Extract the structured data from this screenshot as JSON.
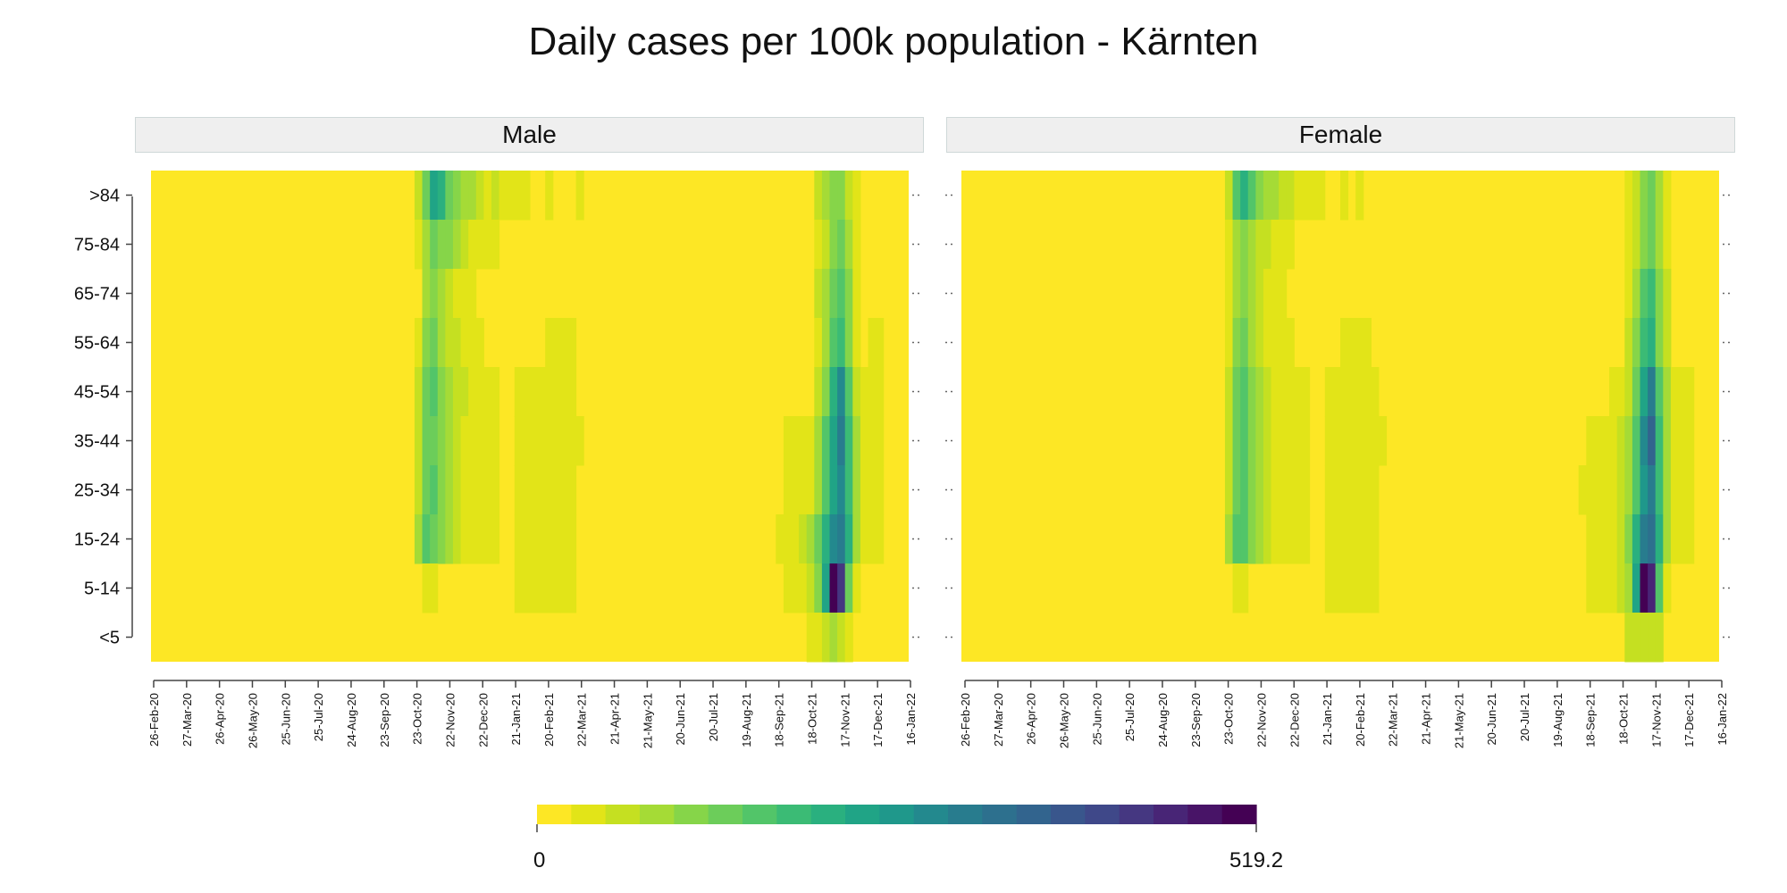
{
  "chart_data": {
    "type": "heatmap",
    "title": "Daily cases per 100k population - Kärnten",
    "panels": [
      {
        "name": "Male",
        "key": "male"
      },
      {
        "name": "Female",
        "key": "female"
      }
    ],
    "age_groups": [
      ">84",
      "75-84",
      "65-74",
      "55-64",
      "45-54",
      "35-44",
      "25-34",
      "15-24",
      "5-14",
      "<5"
    ],
    "x_ticks": [
      "26-Feb-20",
      "27-Mar-20",
      "26-Apr-20",
      "26-May-20",
      "25-Jun-20",
      "25-Jul-20",
      "24-Aug-20",
      "23-Sep-20",
      "23-Oct-20",
      "22-Nov-20",
      "22-Dec-20",
      "21-Jan-21",
      "20-Feb-21",
      "22-Mar-21",
      "21-Apr-21",
      "21-May-21",
      "20-Jun-21",
      "20-Jul-21",
      "19-Aug-21",
      "18-Sep-21",
      "18-Oct-21",
      "17-Nov-21",
      "17-Dec-21",
      "16-Jan-22"
    ],
    "x_range": [
      "2020-02-26",
      "2022-01-16"
    ],
    "legend": {
      "min_label": "0",
      "max_label": "519.2",
      "min": 0,
      "max": 519.2,
      "position": "bottom"
    },
    "colors": [
      "#fde725",
      "#e2e418",
      "#c5e021",
      "#a5db36",
      "#86d549",
      "#6ccd5a",
      "#52c569",
      "#3bbb75",
      "#2ab07f",
      "#20a486",
      "#1f988b",
      "#23898e",
      "#287c8e",
      "#2d708e",
      "#32648e",
      "#39568c",
      "#3f4889",
      "#453781",
      "#482576",
      "#481467",
      "#440154"
    ],
    "cell_dates": [
      "23-Oct-20",
      "30-Oct-20",
      "06-Nov-20",
      "13-Nov-20",
      "20-Nov-20",
      "27-Nov-20",
      "04-Dec-20",
      "11-Dec-20",
      "18-Dec-20",
      "25-Dec-20",
      "01-Jan-21",
      "08-Jan-21",
      "15-Jan-21",
      "22-Jan-21",
      "29-Jan-21",
      "05-Feb-21",
      "12-Feb-21",
      "19-Feb-21",
      "26-Feb-21",
      "05-Mar-21",
      "12-Mar-21",
      "19-Mar-21",
      "26-Mar-21",
      "02-Apr-21",
      "09-Apr-21",
      "16-Apr-21",
      "23-Apr-21",
      "30-Apr-21",
      "07-May-21",
      "14-May-21",
      "21-May-21",
      "28-May-21",
      "04-Jun-21",
      "11-Jun-21",
      "18-Jun-21",
      "25-Jun-21",
      "02-Jul-21",
      "09-Jul-21",
      "16-Jul-21",
      "23-Jul-21",
      "30-Jul-21",
      "06-Aug-21",
      "13-Aug-21",
      "20-Aug-21",
      "27-Aug-21",
      "03-Sep-21",
      "10-Sep-21",
      "17-Sep-21",
      "24-Sep-21",
      "01-Oct-21",
      "08-Oct-21",
      "15-Oct-21",
      "22-Oct-21",
      "29-Oct-21",
      "05-Nov-21",
      "12-Nov-21",
      "19-Nov-21",
      "26-Nov-21",
      "03-Dec-21",
      "10-Dec-21",
      "17-Dec-21",
      "24-Dec-21",
      "31-Dec-21",
      "07-Jan-22",
      "14-Jan-22"
    ],
    "value_note": "Cells not listed are 0 (darkest yellow). Each row has one value per date in cell_dates.",
    "male": {
      ">84": [
        2,
        5,
        9,
        8,
        5,
        4,
        3,
        3,
        2,
        1,
        2,
        1,
        1,
        1,
        1,
        0,
        0,
        1,
        0,
        0,
        0,
        1,
        0,
        0,
        0,
        0,
        0,
        0,
        0,
        0,
        0,
        0,
        0,
        0,
        0,
        0,
        0,
        0,
        0,
        0,
        0,
        0,
        0,
        0,
        0,
        0,
        0,
        0,
        0,
        0,
        0,
        0,
        2,
        3,
        4,
        4,
        2,
        1,
        0,
        0,
        0,
        0,
        0,
        0,
        0
      ],
      "75-84": [
        1,
        3,
        5,
        4,
        4,
        3,
        2,
        1,
        1,
        1,
        1,
        0,
        0,
        0,
        0,
        0,
        0,
        0,
        0,
        0,
        0,
        0,
        0,
        0,
        0,
        0,
        0,
        0,
        0,
        0,
        0,
        0,
        0,
        0,
        0,
        0,
        0,
        0,
        0,
        0,
        0,
        0,
        0,
        0,
        0,
        0,
        0,
        0,
        0,
        0,
        0,
        0,
        1,
        2,
        4,
        5,
        3,
        1,
        0,
        0,
        0,
        0,
        0,
        0,
        0
      ],
      "65-74": [
        0,
        3,
        4,
        3,
        2,
        1,
        1,
        1,
        0,
        0,
        0,
        0,
        0,
        0,
        0,
        0,
        0,
        0,
        0,
        0,
        0,
        0,
        0,
        0,
        0,
        0,
        0,
        0,
        0,
        0,
        0,
        0,
        0,
        0,
        0,
        0,
        0,
        0,
        0,
        0,
        0,
        0,
        0,
        0,
        0,
        0,
        0,
        0,
        0,
        0,
        0,
        0,
        2,
        3,
        5,
        6,
        4,
        1,
        0,
        0,
        0,
        0,
        0,
        0,
        0
      ],
      "55-64": [
        1,
        4,
        5,
        3,
        2,
        2,
        1,
        1,
        1,
        0,
        0,
        0,
        0,
        0,
        0,
        0,
        0,
        1,
        1,
        1,
        1,
        0,
        0,
        0,
        0,
        0,
        0,
        0,
        0,
        0,
        0,
        0,
        0,
        0,
        0,
        0,
        0,
        0,
        0,
        0,
        0,
        0,
        0,
        0,
        0,
        0,
        0,
        0,
        0,
        0,
        0,
        0,
        1,
        3,
        6,
        7,
        4,
        1,
        0,
        1,
        1,
        0,
        0,
        0,
        0
      ],
      "45-54": [
        2,
        5,
        6,
        4,
        3,
        2,
        2,
        1,
        1,
        1,
        1,
        0,
        0,
        1,
        1,
        1,
        1,
        1,
        1,
        1,
        1,
        0,
        0,
        0,
        0,
        0,
        0,
        0,
        0,
        0,
        0,
        0,
        0,
        0,
        0,
        0,
        0,
        0,
        0,
        0,
        0,
        0,
        0,
        0,
        0,
        0,
        0,
        0,
        0,
        0,
        0,
        0,
        2,
        4,
        8,
        11,
        6,
        2,
        1,
        1,
        1,
        0,
        0,
        0,
        0
      ],
      "35-44": [
        2,
        5,
        5,
        4,
        3,
        2,
        1,
        1,
        1,
        1,
        1,
        0,
        0,
        1,
        1,
        1,
        1,
        1,
        1,
        1,
        1,
        1,
        0,
        0,
        0,
        0,
        0,
        0,
        0,
        0,
        0,
        0,
        0,
        0,
        0,
        0,
        0,
        0,
        0,
        0,
        0,
        0,
        0,
        0,
        0,
        0,
        0,
        0,
        1,
        1,
        1,
        1,
        3,
        6,
        9,
        12,
        7,
        3,
        1,
        1,
        1,
        0,
        0,
        0,
        0
      ],
      "25-34": [
        2,
        5,
        6,
        4,
        3,
        2,
        1,
        1,
        1,
        1,
        1,
        0,
        0,
        1,
        1,
        1,
        1,
        1,
        1,
        1,
        1,
        0,
        0,
        0,
        0,
        0,
        0,
        0,
        0,
        0,
        0,
        0,
        0,
        0,
        0,
        0,
        0,
        0,
        0,
        0,
        0,
        0,
        0,
        0,
        0,
        0,
        0,
        0,
        1,
        1,
        1,
        1,
        3,
        6,
        9,
        11,
        7,
        3,
        1,
        1,
        1,
        0,
        0,
        0,
        0
      ],
      "15-24": [
        3,
        6,
        5,
        4,
        3,
        2,
        1,
        1,
        1,
        1,
        1,
        0,
        0,
        1,
        1,
        1,
        1,
        1,
        1,
        1,
        1,
        0,
        0,
        0,
        0,
        0,
        0,
        0,
        0,
        0,
        0,
        0,
        0,
        0,
        0,
        0,
        0,
        0,
        0,
        0,
        0,
        0,
        0,
        0,
        0,
        0,
        0,
        1,
        1,
        1,
        2,
        3,
        5,
        8,
        11,
        12,
        8,
        3,
        1,
        1,
        1,
        0,
        0,
        0,
        0
      ],
      "5-14": [
        0,
        1,
        1,
        0,
        0,
        0,
        0,
        0,
        0,
        0,
        0,
        0,
        0,
        1,
        1,
        1,
        1,
        1,
        1,
        1,
        1,
        0,
        0,
        0,
        0,
        0,
        0,
        0,
        0,
        0,
        0,
        0,
        0,
        0,
        0,
        0,
        0,
        0,
        0,
        0,
        0,
        0,
        0,
        0,
        0,
        0,
        0,
        0,
        1,
        1,
        1,
        2,
        4,
        9,
        20,
        17,
        5,
        1,
        0,
        0,
        0,
        0,
        0,
        0,
        0
      ],
      "<5": [
        0,
        0,
        0,
        0,
        0,
        0,
        0,
        0,
        0,
        0,
        0,
        0,
        0,
        0,
        0,
        0,
        0,
        0,
        0,
        0,
        0,
        0,
        0,
        0,
        0,
        0,
        0,
        0,
        0,
        0,
        0,
        0,
        0,
        0,
        0,
        0,
        0,
        0,
        0,
        0,
        0,
        0,
        0,
        0,
        0,
        0,
        0,
        0,
        0,
        0,
        0,
        1,
        1,
        2,
        3,
        2,
        1,
        0,
        0,
        0,
        0,
        0,
        0,
        0,
        0
      ]
    },
    "female": {
      ">84": [
        2,
        6,
        8,
        6,
        4,
        3,
        3,
        2,
        2,
        1,
        1,
        1,
        1,
        0,
        0,
        1,
        0,
        1,
        0,
        0,
        0,
        0,
        0,
        0,
        0,
        0,
        0,
        0,
        0,
        0,
        0,
        0,
        0,
        0,
        0,
        0,
        0,
        0,
        0,
        0,
        0,
        0,
        0,
        0,
        0,
        0,
        0,
        0,
        0,
        0,
        0,
        0,
        1,
        2,
        4,
        5,
        3,
        1,
        0,
        0,
        0,
        0,
        0,
        0,
        0
      ],
      "75-84": [
        1,
        3,
        4,
        3,
        2,
        2,
        1,
        1,
        1,
        0,
        0,
        0,
        0,
        0,
        0,
        0,
        0,
        0,
        0,
        0,
        0,
        0,
        0,
        0,
        0,
        0,
        0,
        0,
        0,
        0,
        0,
        0,
        0,
        0,
        0,
        0,
        0,
        0,
        0,
        0,
        0,
        0,
        0,
        0,
        0,
        0,
        0,
        0,
        0,
        0,
        0,
        0,
        1,
        2,
        4,
        5,
        3,
        1,
        0,
        0,
        0,
        0,
        0,
        0,
        0
      ],
      "65-74": [
        1,
        3,
        4,
        3,
        2,
        1,
        1,
        1,
        0,
        0,
        0,
        0,
        0,
        0,
        0,
        0,
        0,
        0,
        0,
        0,
        0,
        0,
        0,
        0,
        0,
        0,
        0,
        0,
        0,
        0,
        0,
        0,
        0,
        0,
        0,
        0,
        0,
        0,
        0,
        0,
        0,
        0,
        0,
        0,
        0,
        0,
        0,
        0,
        0,
        0,
        0,
        0,
        1,
        3,
        6,
        7,
        4,
        2,
        0,
        0,
        0,
        0,
        0,
        0,
        0
      ],
      "55-64": [
        1,
        4,
        5,
        3,
        2,
        1,
        1,
        1,
        1,
        0,
        0,
        0,
        0,
        0,
        0,
        1,
        1,
        1,
        1,
        0,
        0,
        0,
        0,
        0,
        0,
        0,
        0,
        0,
        0,
        0,
        0,
        0,
        0,
        0,
        0,
        0,
        0,
        0,
        0,
        0,
        0,
        0,
        0,
        0,
        0,
        0,
        0,
        0,
        0,
        0,
        0,
        0,
        2,
        4,
        7,
        8,
        4,
        2,
        0,
        0,
        0,
        0,
        0,
        0,
        0
      ],
      "45-54": [
        2,
        5,
        6,
        4,
        3,
        2,
        1,
        1,
        1,
        1,
        1,
        0,
        0,
        1,
        1,
        1,
        1,
        1,
        1,
        1,
        0,
        0,
        0,
        0,
        0,
        0,
        0,
        0,
        0,
        0,
        0,
        0,
        0,
        0,
        0,
        0,
        0,
        0,
        0,
        0,
        0,
        0,
        0,
        0,
        0,
        0,
        0,
        0,
        0,
        0,
        1,
        1,
        2,
        5,
        9,
        12,
        6,
        3,
        1,
        1,
        1,
        0,
        0,
        0,
        0
      ],
      "35-44": [
        2,
        5,
        6,
        4,
        3,
        2,
        1,
        1,
        1,
        1,
        1,
        0,
        0,
        1,
        1,
        1,
        1,
        1,
        1,
        1,
        1,
        0,
        0,
        0,
        0,
        0,
        0,
        0,
        0,
        0,
        0,
        0,
        0,
        0,
        0,
        0,
        0,
        0,
        0,
        0,
        0,
        0,
        0,
        0,
        0,
        0,
        0,
        1,
        1,
        1,
        1,
        2,
        3,
        6,
        11,
        14,
        7,
        3,
        1,
        1,
        1,
        0,
        0,
        0,
        0
      ],
      "25-34": [
        2,
        5,
        6,
        4,
        3,
        2,
        1,
        1,
        1,
        1,
        1,
        0,
        0,
        1,
        1,
        1,
        1,
        1,
        1,
        1,
        0,
        0,
        0,
        0,
        0,
        0,
        0,
        0,
        0,
        0,
        0,
        0,
        0,
        0,
        0,
        0,
        0,
        0,
        0,
        0,
        0,
        0,
        0,
        0,
        0,
        0,
        1,
        1,
        1,
        1,
        1,
        2,
        3,
        6,
        10,
        12,
        7,
        3,
        1,
        1,
        1,
        0,
        0,
        0,
        0
      ],
      "15-24": [
        3,
        6,
        6,
        4,
        3,
        2,
        1,
        1,
        1,
        1,
        1,
        0,
        0,
        1,
        1,
        1,
        1,
        1,
        1,
        1,
        0,
        0,
        0,
        0,
        0,
        0,
        0,
        0,
        0,
        0,
        0,
        0,
        0,
        0,
        0,
        0,
        0,
        0,
        0,
        0,
        0,
        0,
        0,
        0,
        0,
        0,
        0,
        1,
        1,
        1,
        1,
        2,
        4,
        8,
        12,
        13,
        8,
        3,
        1,
        1,
        1,
        0,
        0,
        0,
        0
      ],
      "5-14": [
        0,
        1,
        1,
        0,
        0,
        0,
        0,
        0,
        0,
        0,
        0,
        0,
        0,
        1,
        1,
        1,
        1,
        1,
        1,
        1,
        0,
        0,
        0,
        0,
        0,
        0,
        0,
        0,
        0,
        0,
        0,
        0,
        0,
        0,
        0,
        0,
        0,
        0,
        0,
        0,
        0,
        0,
        0,
        0,
        0,
        0,
        0,
        1,
        1,
        1,
        1,
        2,
        3,
        9,
        20,
        18,
        6,
        1,
        0,
        0,
        0,
        0,
        0,
        0,
        0
      ],
      "<5": [
        0,
        0,
        0,
        0,
        0,
        0,
        0,
        0,
        0,
        0,
        0,
        0,
        0,
        0,
        0,
        0,
        0,
        0,
        0,
        0,
        0,
        0,
        0,
        0,
        0,
        0,
        0,
        0,
        0,
        0,
        0,
        0,
        0,
        0,
        0,
        0,
        0,
        0,
        0,
        0,
        0,
        0,
        0,
        0,
        0,
        0,
        0,
        0,
        0,
        0,
        0,
        0,
        2,
        2,
        2,
        2,
        2,
        0,
        0,
        0,
        0,
        0,
        0,
        0,
        0
      ]
    }
  }
}
